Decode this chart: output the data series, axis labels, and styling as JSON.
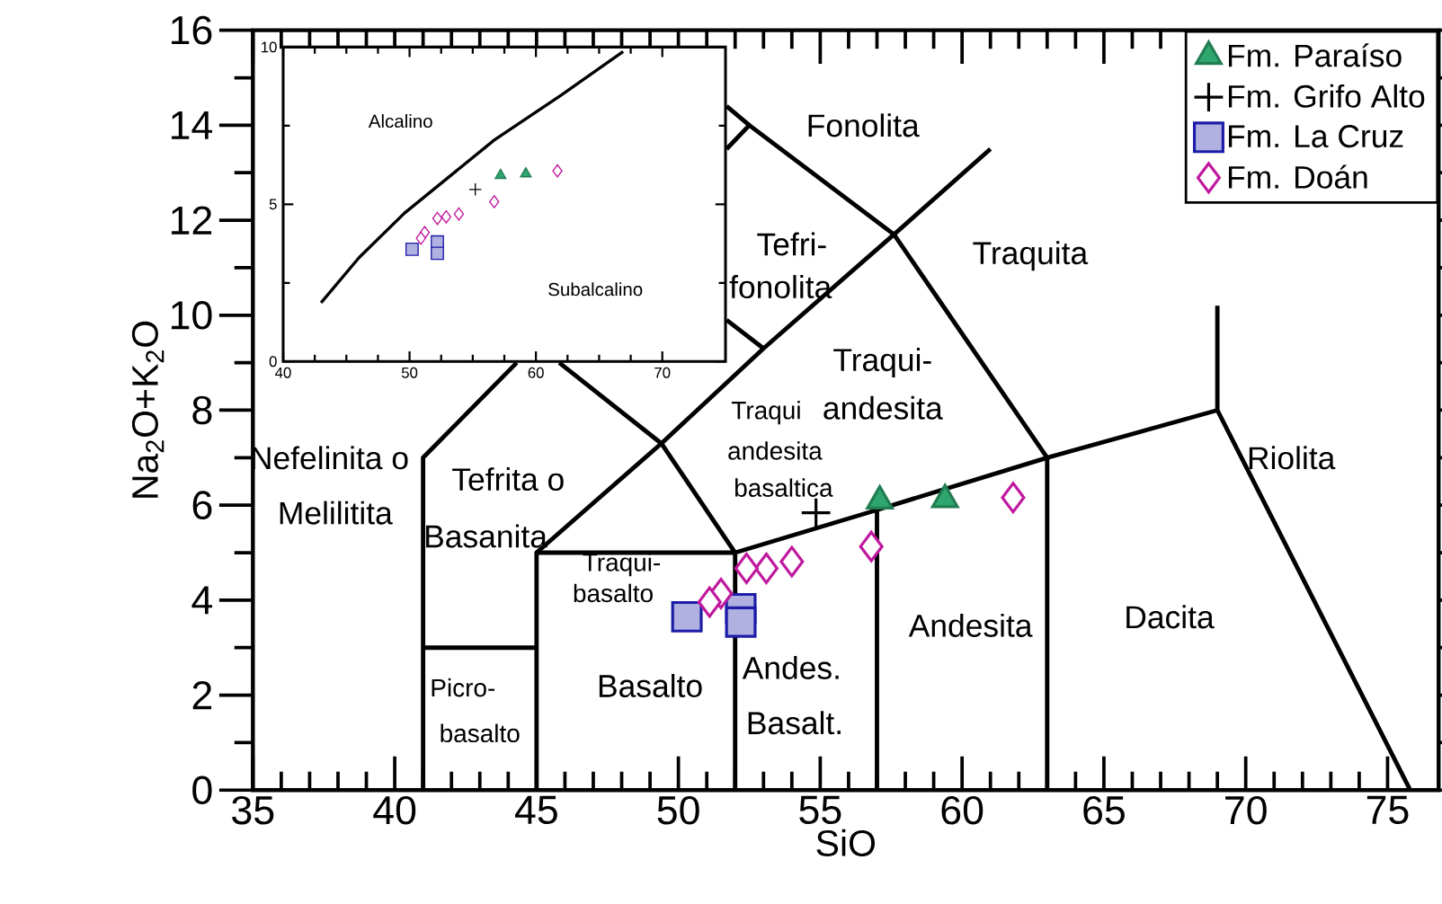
{
  "chart_data": [
    {
      "type": "scatter",
      "xlabel": "SiO",
      "ylabel": "Na$_{2}$O+K$_{2}$O",
      "xlim": [
        35,
        76.8
      ],
      "ylim": [
        0,
        16
      ],
      "xticks": [
        35,
        40,
        45,
        50,
        55,
        60,
        65,
        70,
        75
      ],
      "yticks": [
        0,
        2,
        4,
        6,
        8,
        10,
        12,
        14,
        16
      ],
      "legend": "top right",
      "series": [
        {
          "type": "line",
          "color": "#000000",
          "x": [
            41,
            41,
            44.3
          ],
          "values": [
            0,
            7,
            9
          ]
        },
        {
          "type": "line",
          "color": "#000000",
          "x": [
            41,
            45
          ],
          "values": [
            3,
            3
          ]
        },
        {
          "type": "line",
          "color": "#000000",
          "x": [
            45,
            45,
            52
          ],
          "values": [
            0,
            5,
            5
          ]
        },
        {
          "type": "line",
          "color": "#000000",
          "x": [
            45,
            49.4,
            52
          ],
          "values": [
            5,
            7.3,
            5
          ]
        },
        {
          "type": "line",
          "color": "#000000",
          "x": [
            45.8,
            49.4,
            53,
            57.6,
            61
          ],
          "values": [
            9,
            7.3,
            9.3,
            11.7,
            13.5
          ]
        },
        {
          "type": "line",
          "color": "#000000",
          "x": [
            51.7,
            53
          ],
          "values": [
            9.9,
            9.3
          ]
        },
        {
          "type": "line",
          "color": "#000000",
          "x": [
            51.7,
            52.5,
            57.6,
            63,
            63
          ],
          "values": [
            13.5,
            14,
            11.7,
            7,
            0
          ]
        },
        {
          "type": "line",
          "color": "#000000",
          "x": [
            51.7,
            52.5
          ],
          "values": [
            14.4,
            14
          ]
        },
        {
          "type": "line",
          "color": "#000000",
          "x": [
            52,
            52,
            57,
            57
          ],
          "values": [
            0,
            5,
            5.9,
            0
          ]
        },
        {
          "type": "line",
          "color": "#000000",
          "x": [
            57,
            63,
            69,
            75.8
          ],
          "values": [
            5.9,
            7,
            8,
            0
          ]
        },
        {
          "type": "line",
          "color": "#000000",
          "x": [
            69,
            69
          ],
          "values": [
            8,
            10.2
          ]
        },
        {
          "name": "Fm. Paraíso",
          "marker": "triangle",
          "color": "#2ea66e",
          "x": [
            57.1,
            59.4
          ],
          "values": [
            6.09,
            6.12
          ]
        },
        {
          "name": "Fm. Grifo Alto",
          "marker": "cross",
          "color": "#000000",
          "x": [
            54.85
          ],
          "values": [
            5.84
          ]
        },
        {
          "name": "Fm. La Cruz",
          "marker": "square",
          "color": "#1c1ca8",
          "x": [
            50.3,
            52.2,
            52.2
          ],
          "values": [
            3.65,
            3.82,
            3.54
          ]
        },
        {
          "name": "Fm. Doán",
          "marker": "diamond",
          "color": "#c0189e",
          "x": [
            61.8,
            56.8,
            54.0,
            53.1,
            52.4,
            51.5,
            51.1
          ],
          "values": [
            6.16,
            5.13,
            4.81,
            4.67,
            4.67,
            4.14,
            3.96
          ]
        }
      ],
      "annotations": [
        "Fonolita",
        "Tefri-",
        "fonolita",
        "Traquita",
        "Traqui-",
        "andesita",
        "Traqui",
        "andesita",
        "basaltica",
        "Nefelinita o",
        "Melilitita",
        "Tefrita o",
        "Basanita",
        "Traqui-",
        "basalto",
        "Riolita",
        "Dacita",
        "Andesita",
        "Basalto",
        "Andes.",
        "Basalt.",
        "Picro-",
        "basalto"
      ]
    },
    {
      "type": "scatter",
      "xlim": [
        40,
        75
      ],
      "ylim": [
        0,
        10
      ],
      "xticks": [
        40,
        50,
        60,
        70
      ],
      "yticks": [
        0,
        5,
        10
      ],
      "series": [
        {
          "type": "line",
          "color": "#000000",
          "x": [
            43.0,
            46.0,
            49.6,
            56.7,
            62.0,
            66.9
          ],
          "values": [
            1.87,
            3.3,
            4.72,
            7.04,
            8.47,
            9.86
          ]
        },
        {
          "marker": "triangle",
          "color": "#2ea66e",
          "x": [
            57.2,
            59.2
          ],
          "values": [
            5.92,
            5.97
          ]
        },
        {
          "marker": "cross",
          "color": "#000000",
          "x": [
            55.2
          ],
          "values": [
            5.47
          ]
        },
        {
          "marker": "square",
          "color": "#1c1ca8",
          "x": [
            50.2,
            52.2,
            52.2
          ],
          "values": [
            3.57,
            3.8,
            3.44
          ]
        },
        {
          "marker": "diamond",
          "color": "#c0189e",
          "x": [
            61.7,
            56.7,
            53.9,
            52.9,
            52.2,
            51.2,
            50.9
          ],
          "values": [
            6.06,
            5.08,
            4.69,
            4.6,
            4.55,
            4.1,
            3.92
          ]
        }
      ],
      "annotations": [
        "Alcalino",
        "Subalcalino"
      ]
    }
  ]
}
